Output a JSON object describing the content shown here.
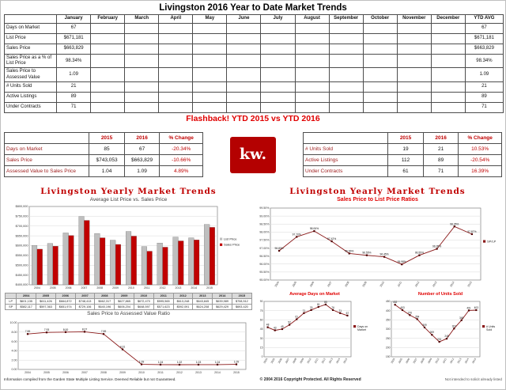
{
  "page": {
    "title": "Livingston 2016 Year to Date Market Trends",
    "footer": {
      "left": "Information compiled from the Garden State Multiple Listing Service.  Deemed Reliable but not Guaranteed.",
      "center": "© 2004 2016 Copyright Protected.  All Rights Reserved",
      "right": "Not intended to solicit already listed"
    }
  },
  "monthly_table": {
    "columns": [
      "January",
      "February",
      "March",
      "April",
      "May",
      "June",
      "July",
      "August",
      "September",
      "October",
      "November",
      "December",
      "YTD AVG"
    ],
    "rows": [
      {
        "label": "Days on Market",
        "values": [
          "67",
          "",
          "",
          "",
          "",
          "",
          "",
          "",
          "",
          "",
          "",
          "",
          "67"
        ]
      },
      {
        "label": "List Price",
        "values": [
          "$671,181",
          "",
          "",
          "",
          "",
          "",
          "",
          "",
          "",
          "",
          "",
          "",
          "$671,181"
        ]
      },
      {
        "label": "Sales Price",
        "values": [
          "$663,829",
          "",
          "",
          "",
          "",
          "",
          "",
          "",
          "",
          "",
          "",
          "",
          "$663,829"
        ]
      },
      {
        "label": "Sales Price as a % of List Price",
        "values": [
          "98.34%",
          "",
          "",
          "",
          "",
          "",
          "",
          "",
          "",
          "",
          "",
          "",
          "98.34%"
        ]
      },
      {
        "label": "Sales Price to Assessed Value",
        "values": [
          "1.09",
          "",
          "",
          "",
          "",
          "",
          "",
          "",
          "",
          "",
          "",
          "",
          "1.09"
        ]
      },
      {
        "label": "# Units Sold",
        "values": [
          "21",
          "",
          "",
          "",
          "",
          "",
          "",
          "",
          "",
          "",
          "",
          "",
          "21"
        ]
      },
      {
        "label": "Active Listings",
        "values": [
          "89",
          "",
          "",
          "",
          "",
          "",
          "",
          "",
          "",
          "",
          "",
          "",
          "89"
        ]
      },
      {
        "label": "Under Contracts",
        "values": [
          "71",
          "",
          "",
          "",
          "",
          "",
          "",
          "",
          "",
          "",
          "",
          "",
          "71"
        ]
      }
    ]
  },
  "flashback": {
    "title": "Flashback!  YTD 2015 vs YTD 2016",
    "logo_text": "kw.",
    "logo_color": "#b40101",
    "left_table": {
      "columns": [
        "2015",
        "2016",
        "% Change"
      ],
      "rows": [
        [
          "Days on Market",
          "85",
          "67",
          "-20.34%"
        ],
        [
          "Sales Price",
          "$743,053",
          "$663,829",
          "-10.66%"
        ],
        [
          "Assessed Value to Sales Price",
          "1.04",
          "1.09",
          "4.89%"
        ]
      ]
    },
    "right_table": {
      "columns": [
        "2015",
        "2016",
        "% Change"
      ],
      "rows": [
        [
          "# Units Sold",
          "19",
          "21",
          "10.53%"
        ],
        [
          "Active Listings",
          "112",
          "89",
          "-20.54%"
        ],
        [
          "Under Contracts",
          "61",
          "71",
          "16.39%"
        ]
      ]
    }
  },
  "sections": {
    "left_title": "Livingston Yearly Market Trends",
    "right_title": "Livingston Yearly Market Trends"
  },
  "chart_data": [
    {
      "type": "bar",
      "title": "Average List Price vs. Sales Price",
      "categories": [
        "2004",
        "2005",
        "2006",
        "2007",
        "2008",
        "2009",
        "2010",
        "2011",
        "2012",
        "2013",
        "2014",
        "2015"
      ],
      "series": [
        {
          "name": "List Price",
          "color": "#bfbfbf",
          "values": [
            601135,
            611426,
            664872,
            748413,
            662317,
            627865,
            672470,
            595565,
            613248,
            643845,
            639989,
            708512
          ]
        },
        {
          "name": "Sales Price",
          "color": "#c00000",
          "values": [
            582117,
            597363,
            651974,
            729106,
            640196,
            606204,
            648597,
            571623,
            592091,
            624208,
            629429,
            693420
          ]
        }
      ],
      "ylim": [
        400000,
        800000
      ],
      "ystep": 50000,
      "yfmt": "price",
      "grid": true,
      "legend_position": "right",
      "table": {
        "rows": [
          {
            "label": "LP",
            "values": [
              "$601,135",
              "$611,426",
              "$664,872",
              "$748,413",
              "$662,317",
              "$627,865",
              "$672,470",
              "$595,565",
              "$613,248",
              "$643,845",
              "$639,989",
              "$708,512"
            ]
          },
          {
            "label": "SP",
            "values": [
              "$582,117",
              "$597,363",
              "$651,974",
              "$729,106",
              "$640,196",
              "$606,204",
              "$648,597",
              "$571,623",
              "$592,091",
              "$624,208",
              "$629,429",
              "$693,420"
            ]
          }
        ]
      }
    },
    {
      "type": "line",
      "title": "Sales Price to Assessed Value Ratio",
      "categories": [
        "2004",
        "2005",
        "2006",
        "2007",
        "2008",
        "2009",
        "2010",
        "2011",
        "2012",
        "2013",
        "2014",
        "2015"
      ],
      "values": [
        7.59,
        7.93,
        8.0,
        8.07,
        7.59,
        4.31,
        1.09,
        1.04,
        1.02,
        1.03,
        1.04,
        1.09
      ],
      "ylim": [
        0,
        10
      ],
      "ystep": 2,
      "yfmt": "ratio",
      "lfmt": "ratio",
      "color": "#8b1a1a",
      "point_labels": true,
      "grid": true
    },
    {
      "type": "line",
      "title": "Sales Price to List Price Ratios",
      "categories": [
        "2004",
        "2005",
        "2006",
        "2007",
        "2008",
        "2009",
        "2010",
        "2011",
        "2012",
        "2013",
        "2014",
        "2015"
      ],
      "values": [
        96.83,
        97.7,
        98.06,
        97.42,
        96.66,
        96.55,
        96.45,
        95.98,
        96.55,
        96.95,
        98.35,
        97.87
      ],
      "ylim": [
        95.0,
        99.5
      ],
      "ystep": 0.5,
      "yfmt": "pct",
      "lfmt": "pct",
      "legend": "SP/LP",
      "rotate_x": true,
      "color": "#8b1a1a",
      "point_labels": true,
      "grid": true,
      "legend_position": "right"
    },
    {
      "type": "line",
      "title": "Average Days on Market",
      "categories": [
        "2004",
        "2005",
        "2006",
        "2007",
        "2008",
        "2009",
        "2010",
        "2011",
        "2012",
        "2013",
        "2014",
        "2015"
      ],
      "values": [
        48,
        43,
        45,
        52,
        61,
        71,
        76,
        81,
        85,
        76,
        71,
        67
      ],
      "ylim": [
        0,
        90
      ],
      "ystep": 15,
      "yfmt": "int",
      "lfmt": "int",
      "legend": "Days on Market",
      "rotate_x": true,
      "color": "#8b1a1a",
      "point_labels": true,
      "grid": true,
      "legend_position": "right"
    },
    {
      "type": "line",
      "title": "Number of Units Sold",
      "categories": [
        "2004",
        "2005",
        "2006",
        "2007",
        "2008",
        "2009",
        "2010",
        "2011",
        "2012",
        "2013",
        "2014",
        "2015"
      ],
      "values": [
        432,
        403,
        376,
        354,
        309,
        269,
        231,
        248,
        303,
        348,
        401,
        403
      ],
      "ylim": [
        150,
        450
      ],
      "ystep": 50,
      "yfmt": "int",
      "lfmt": "int",
      "legend": "# Units Sold",
      "rotate_x": true,
      "color": "#8b1a1a",
      "point_labels": true,
      "grid": true,
      "legend_position": "right"
    }
  ]
}
